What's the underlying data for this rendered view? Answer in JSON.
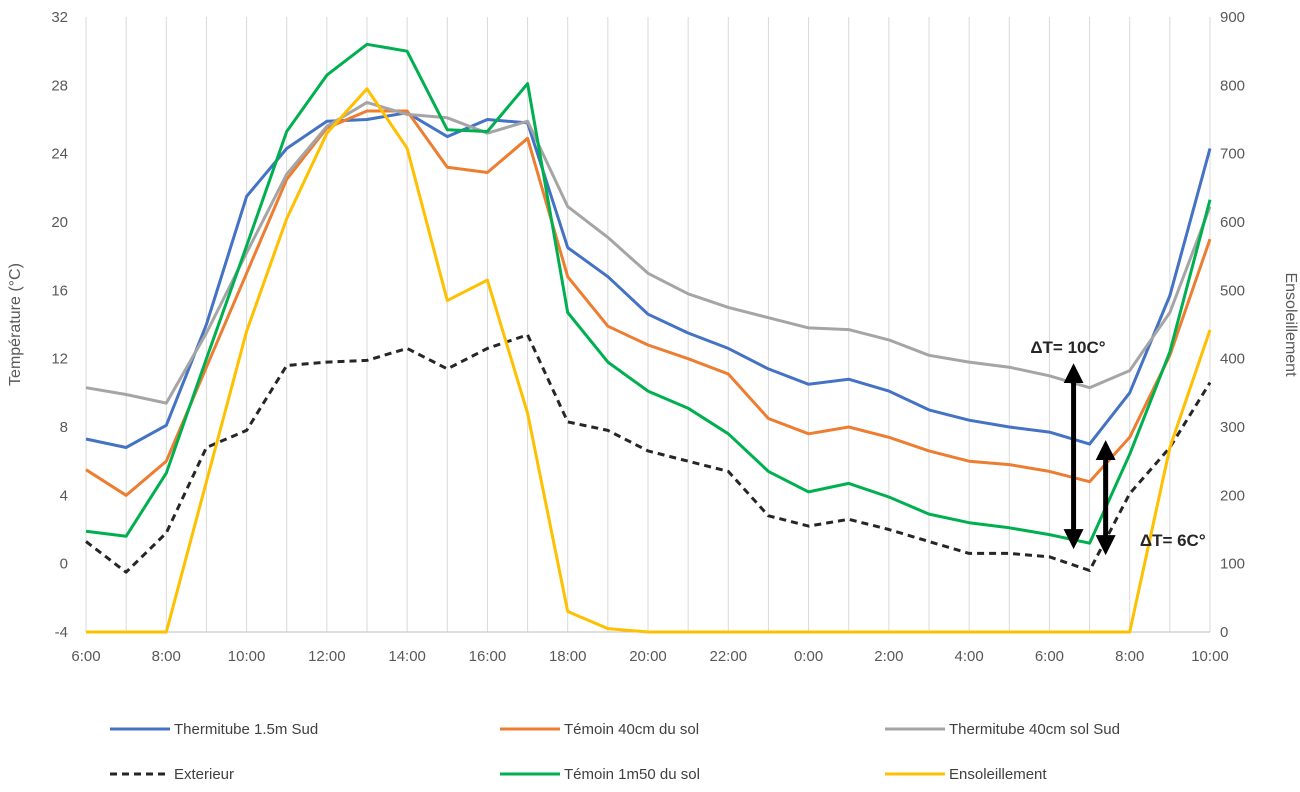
{
  "chart_data": {
    "type": "line",
    "categories": [
      "6:00",
      "7:00",
      "8:00",
      "9:00",
      "10:00",
      "11:00",
      "12:00",
      "13:00",
      "14:00",
      "15:00",
      "16:00",
      "17:00",
      "18:00",
      "19:00",
      "20:00",
      "21:00",
      "22:00",
      "23:00",
      "0:00",
      "1:00",
      "2:00",
      "3:00",
      "4:00",
      "5:00",
      "6:00",
      "7:00",
      "8:00",
      "9:00",
      "10:00"
    ],
    "x_tick_labels": [
      "6:00",
      "8:00",
      "10:00",
      "12:00",
      "14:00",
      "16:00",
      "18:00",
      "20:00",
      "22:00",
      "0:00",
      "2:00",
      "4:00",
      "6:00",
      "8:00",
      "10:00"
    ],
    "ylabel": "Température (°C)",
    "y2label": "Ensoleillement",
    "ylim": [
      -4,
      32
    ],
    "y_ticks": [
      -4,
      0,
      4,
      8,
      12,
      16,
      20,
      24,
      28,
      32
    ],
    "y2lim": [
      0,
      900
    ],
    "y2_ticks": [
      0,
      100,
      200,
      300,
      400,
      500,
      600,
      700,
      800,
      900
    ],
    "grid": "vertical",
    "legend_position": "bottom",
    "series": [
      {
        "name": "Thermitube 1.5m Sud",
        "color": "#4472C4",
        "dash": "solid",
        "axis": "left",
        "values": [
          7.3,
          6.8,
          8.1,
          14.0,
          21.5,
          24.3,
          25.9,
          26.0,
          26.4,
          25.0,
          26.0,
          25.8,
          18.5,
          16.8,
          14.6,
          13.5,
          12.6,
          11.4,
          10.5,
          10.8,
          10.1,
          9.0,
          8.4,
          8.0,
          7.7,
          7.0,
          10.0,
          15.7,
          24.3
        ]
      },
      {
        "name": "Témoin 40cm du sol",
        "color": "#ED7D31",
        "dash": "solid",
        "axis": "left",
        "values": [
          5.5,
          4.0,
          6.0,
          11.5,
          17.0,
          22.5,
          25.5,
          26.5,
          26.5,
          23.2,
          22.9,
          24.9,
          16.8,
          13.9,
          12.8,
          12.0,
          11.1,
          8.5,
          7.6,
          8.0,
          7.4,
          6.6,
          6.0,
          5.8,
          5.4,
          4.8,
          7.4,
          12.2,
          19.0
        ]
      },
      {
        "name": "Thermitube 40cm sol Sud",
        "color": "#A5A5A5",
        "dash": "solid",
        "axis": "left",
        "values": [
          10.3,
          9.9,
          9.4,
          13.5,
          18.2,
          22.8,
          25.6,
          27.0,
          26.3,
          26.1,
          25.2,
          25.9,
          20.9,
          19.1,
          17.0,
          15.8,
          15.0,
          14.4,
          13.8,
          13.7,
          13.1,
          12.2,
          11.8,
          11.5,
          11.0,
          10.3,
          11.3,
          14.7,
          20.9
        ]
      },
      {
        "name": "Exterieur",
        "color": "#262626",
        "dash": "dashed",
        "axis": "left",
        "values": [
          1.3,
          -0.5,
          1.8,
          6.8,
          7.8,
          11.6,
          11.8,
          11.9,
          12.6,
          11.4,
          12.6,
          13.4,
          8.3,
          7.8,
          6.6,
          6.0,
          5.4,
          2.8,
          2.2,
          2.6,
          2.0,
          1.3,
          0.6,
          0.6,
          0.4,
          -0.4,
          4.1,
          6.8,
          10.6
        ]
      },
      {
        "name": "Témoin 1m50 du sol",
        "color": "#00B050",
        "dash": "solid",
        "axis": "left",
        "values": [
          1.9,
          1.6,
          5.3,
          12.0,
          18.6,
          25.3,
          28.6,
          30.4,
          30.0,
          25.4,
          25.3,
          28.1,
          14.7,
          11.8,
          10.1,
          9.1,
          7.6,
          5.4,
          4.2,
          4.7,
          3.9,
          2.9,
          2.4,
          2.1,
          1.7,
          1.2,
          6.4,
          12.4,
          21.3
        ]
      },
      {
        "name": "Ensoleillement",
        "color": "#FFC000",
        "dash": "solid",
        "axis": "right",
        "values": [
          0,
          0,
          0,
          220,
          440,
          605,
          730,
          795,
          708,
          485,
          515,
          320,
          30,
          5,
          0,
          0,
          0,
          0,
          0,
          0,
          0,
          0,
          0,
          0,
          0,
          0,
          0,
          270,
          442
        ]
      }
    ],
    "annotations": [
      {
        "text": "ΔT= 10C°",
        "x_index": 25,
        "y_top": 11.5,
        "y_bottom": 1.2
      },
      {
        "text": "ΔT= 6C°",
        "x_index": 25.5,
        "y_top": 7.0,
        "y_bottom": 1.2
      }
    ]
  }
}
